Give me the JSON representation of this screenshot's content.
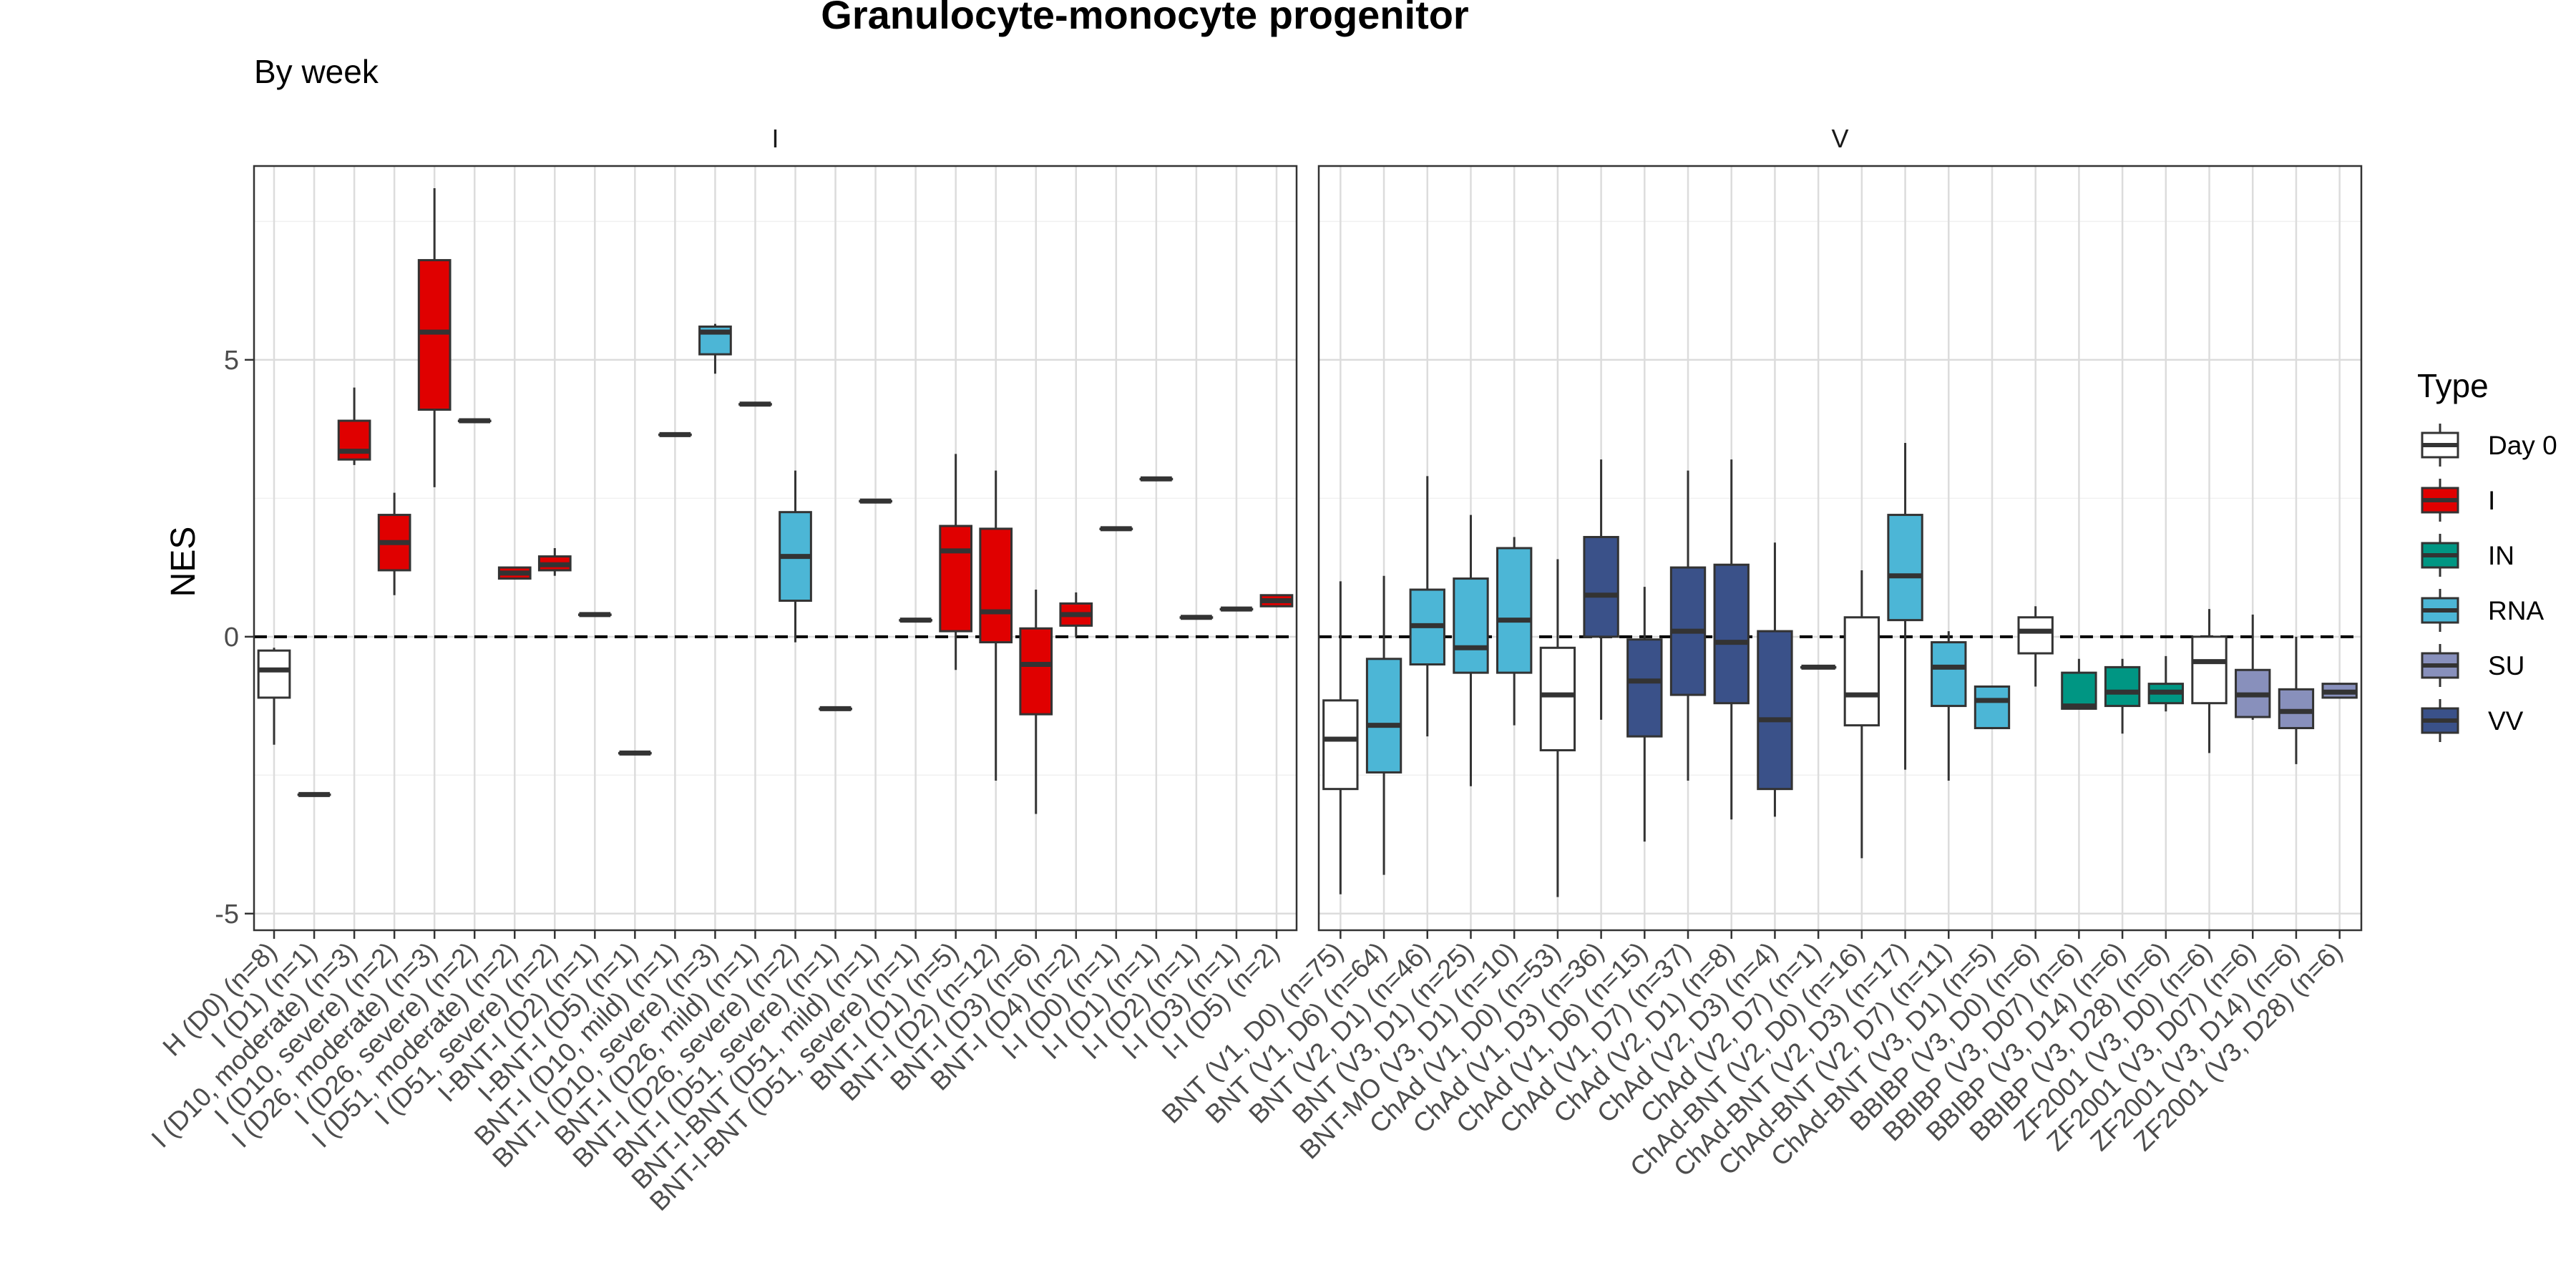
{
  "chart_data": {
    "type": "box",
    "title": "Granulocyte-monocyte progenitor",
    "subtitle": "By week",
    "ylabel": "NES",
    "xlabel": "",
    "ylim": [
      -5.3,
      8.5
    ],
    "yticks": [
      -5,
      0,
      5
    ],
    "ytick_labels": [
      "-5",
      "0",
      "5"
    ],
    "reference_line": 0,
    "grid": true,
    "legend": {
      "title": "Type",
      "position": "right",
      "items": [
        {
          "label": "Day 0",
          "color": "#ffffff"
        },
        {
          "label": "I",
          "color": "#e00000"
        },
        {
          "label": "IN",
          "color": "#009683"
        },
        {
          "label": "RNA",
          "color": "#4cb6d6"
        },
        {
          "label": "SU",
          "color": "#8890bc"
        },
        {
          "label": "VV",
          "color": "#3a5189"
        }
      ]
    },
    "panels": [
      {
        "strip": "I",
        "groups": [
          {
            "label": "H (D0) (n=8)",
            "type": "Day 0",
            "q1": -1.1,
            "median": -0.6,
            "q3": -0.25,
            "lo": -1.95,
            "hi": -0.2
          },
          {
            "label": "I (D1) (n=1)",
            "type": "I",
            "q1": -2.85,
            "median": -2.85,
            "q3": -2.85,
            "lo": -2.85,
            "hi": -2.85
          },
          {
            "label": "I (D10, moderate) (n=3)",
            "type": "I",
            "q1": 3.2,
            "median": 3.35,
            "q3": 3.9,
            "lo": 3.1,
            "hi": 4.5
          },
          {
            "label": "I (D10, severe) (n=2)",
            "type": "I",
            "q1": 1.2,
            "median": 1.7,
            "q3": 2.2,
            "lo": 0.75,
            "hi": 2.6
          },
          {
            "label": "I (D26, moderate) (n=3)",
            "type": "I",
            "q1": 4.1,
            "median": 5.5,
            "q3": 6.8,
            "lo": 2.7,
            "hi": 8.1
          },
          {
            "label": "I (D26, severe) (n=2)",
            "type": "I",
            "q1": 3.9,
            "median": 3.9,
            "q3": 3.9,
            "lo": 3.9,
            "hi": 3.9
          },
          {
            "label": "I (D51, moderate) (n=2)",
            "type": "I",
            "q1": 1.05,
            "median": 1.15,
            "q3": 1.25,
            "lo": 1.05,
            "hi": 1.25
          },
          {
            "label": "I (D51, severe) (n=2)",
            "type": "I",
            "q1": 1.2,
            "median": 1.3,
            "q3": 1.45,
            "lo": 1.1,
            "hi": 1.6
          },
          {
            "label": "I-BNT-I (D2) (n=1)",
            "type": "I",
            "q1": 0.4,
            "median": 0.4,
            "q3": 0.4,
            "lo": 0.4,
            "hi": 0.4
          },
          {
            "label": "I-BNT-I (D5) (n=1)",
            "type": "I",
            "q1": -2.1,
            "median": -2.1,
            "q3": -2.1,
            "lo": -2.1,
            "hi": -2.1
          },
          {
            "label": "BNT-I (D10, mild) (n=1)",
            "type": "RNA",
            "q1": 3.65,
            "median": 3.65,
            "q3": 3.65,
            "lo": 3.65,
            "hi": 3.65
          },
          {
            "label": "BNT-I (D10, severe) (n=3)",
            "type": "RNA",
            "q1": 5.1,
            "median": 5.5,
            "q3": 5.6,
            "lo": 4.75,
            "hi": 5.65
          },
          {
            "label": "BNT-I (D26, mild) (n=1)",
            "type": "RNA",
            "q1": 4.2,
            "median": 4.2,
            "q3": 4.2,
            "lo": 4.2,
            "hi": 4.2
          },
          {
            "label": "BNT-I (D26, severe) (n=2)",
            "type": "RNA",
            "q1": 0.65,
            "median": 1.45,
            "q3": 2.25,
            "lo": -0.1,
            "hi": 3.0
          },
          {
            "label": "BNT-I (D51, severe) (n=1)",
            "type": "RNA",
            "q1": -1.3,
            "median": -1.3,
            "q3": -1.3,
            "lo": -1.3,
            "hi": -1.3
          },
          {
            "label": "BNT-I-BNT (D51, mild) (n=1)",
            "type": "RNA",
            "q1": 2.45,
            "median": 2.45,
            "q3": 2.45,
            "lo": 2.45,
            "hi": 2.45
          },
          {
            "label": "BNT-I-BNT (D51, severe) (n=1)",
            "type": "RNA",
            "q1": 0.3,
            "median": 0.3,
            "q3": 0.3,
            "lo": 0.3,
            "hi": 0.3
          },
          {
            "label": "BNT-I (D1) (n=5)",
            "type": "I",
            "q1": 0.1,
            "median": 1.55,
            "q3": 2.0,
            "lo": -0.6,
            "hi": 3.3
          },
          {
            "label": "BNT-I (D2) (n=12)",
            "type": "I",
            "q1": -0.1,
            "median": 0.45,
            "q3": 1.95,
            "lo": -2.6,
            "hi": 3.0
          },
          {
            "label": "BNT-I (D3) (n=6)",
            "type": "I",
            "q1": -1.4,
            "median": -0.5,
            "q3": 0.15,
            "lo": -3.2,
            "hi": 0.85
          },
          {
            "label": "BNT-I (D4) (n=2)",
            "type": "I",
            "q1": 0.2,
            "median": 0.4,
            "q3": 0.6,
            "lo": 0.0,
            "hi": 0.8
          },
          {
            "label": "I-I (D0) (n=1)",
            "type": "I",
            "q1": 1.95,
            "median": 1.95,
            "q3": 1.95,
            "lo": 1.95,
            "hi": 1.95
          },
          {
            "label": "I-I (D1) (n=1)",
            "type": "I",
            "q1": 2.85,
            "median": 2.85,
            "q3": 2.85,
            "lo": 2.85,
            "hi": 2.85
          },
          {
            "label": "I-I (D2) (n=1)",
            "type": "I",
            "q1": 0.35,
            "median": 0.35,
            "q3": 0.35,
            "lo": 0.35,
            "hi": 0.35
          },
          {
            "label": "I-I (D3) (n=1)",
            "type": "I",
            "q1": 0.5,
            "median": 0.5,
            "q3": 0.5,
            "lo": 0.5,
            "hi": 0.5
          },
          {
            "label": "I-I (D5) (n=2)",
            "type": "I",
            "q1": 0.55,
            "median": 0.65,
            "q3": 0.75,
            "lo": 0.55,
            "hi": 0.75
          }
        ]
      },
      {
        "strip": "V",
        "groups": [
          {
            "label": "BNT (V1, D0) (n=75)",
            "type": "Day 0",
            "q1": -2.75,
            "median": -1.85,
            "q3": -1.15,
            "lo": -4.65,
            "hi": 1.0
          },
          {
            "label": "BNT (V1, D6) (n=64)",
            "type": "RNA",
            "q1": -2.45,
            "median": -1.6,
            "q3": -0.4,
            "lo": -4.3,
            "hi": 1.1
          },
          {
            "label": "BNT (V2, D1) (n=46)",
            "type": "RNA",
            "q1": -0.5,
            "median": 0.2,
            "q3": 0.85,
            "lo": -1.8,
            "hi": 2.9
          },
          {
            "label": "BNT (V3, D1) (n=25)",
            "type": "RNA",
            "q1": -0.65,
            "median": -0.2,
            "q3": 1.05,
            "lo": -2.7,
            "hi": 2.2
          },
          {
            "label": "BNT-MO (V3, D1) (n=10)",
            "type": "RNA",
            "q1": -0.65,
            "median": 0.3,
            "q3": 1.6,
            "lo": -1.6,
            "hi": 1.8
          },
          {
            "label": "ChAd (V1, D0) (n=53)",
            "type": "Day 0",
            "q1": -2.05,
            "median": -1.05,
            "q3": -0.2,
            "lo": -4.7,
            "hi": 1.4
          },
          {
            "label": "ChAd (V1, D3) (n=36)",
            "type": "VV",
            "q1": 0.0,
            "median": 0.75,
            "q3": 1.8,
            "lo": -1.5,
            "hi": 3.2
          },
          {
            "label": "ChAd (V1, D6) (n=15)",
            "type": "VV",
            "q1": -1.8,
            "median": -0.8,
            "q3": -0.05,
            "lo": -3.7,
            "hi": 0.9
          },
          {
            "label": "ChAd (V1, D7) (n=37)",
            "type": "VV",
            "q1": -1.05,
            "median": 0.1,
            "q3": 1.25,
            "lo": -2.6,
            "hi": 3.0
          },
          {
            "label": "ChAd (V2, D1) (n=8)",
            "type": "VV",
            "q1": -1.2,
            "median": -0.1,
            "q3": 1.3,
            "lo": -3.3,
            "hi": 3.2
          },
          {
            "label": "ChAd (V2, D3) (n=4)",
            "type": "VV",
            "q1": -2.75,
            "median": -1.5,
            "q3": 0.1,
            "lo": -3.25,
            "hi": 1.7
          },
          {
            "label": "ChAd (V2, D7) (n=1)",
            "type": "VV",
            "q1": -0.55,
            "median": -0.55,
            "q3": -0.55,
            "lo": -0.55,
            "hi": -0.55
          },
          {
            "label": "ChAd-BNT (V2, D0) (n=16)",
            "type": "Day 0",
            "q1": -1.6,
            "median": -1.05,
            "q3": 0.35,
            "lo": -4.0,
            "hi": 1.2
          },
          {
            "label": "ChAd-BNT (V2, D3) (n=17)",
            "type": "RNA",
            "q1": 0.3,
            "median": 1.1,
            "q3": 2.2,
            "lo": -2.4,
            "hi": 3.5
          },
          {
            "label": "ChAd-BNT (V2, D7) (n=11)",
            "type": "RNA",
            "q1": -1.25,
            "median": -0.55,
            "q3": -0.1,
            "lo": -2.6,
            "hi": 0.1
          },
          {
            "label": "ChAd-BNT (V3, D1) (n=5)",
            "type": "RNA",
            "q1": -1.65,
            "median": -1.15,
            "q3": -0.9,
            "lo": -1.65,
            "hi": -0.9
          },
          {
            "label": "BBIBP (V3, D0) (n=6)",
            "type": "Day 0",
            "q1": -0.3,
            "median": 0.1,
            "q3": 0.35,
            "lo": -0.9,
            "hi": 0.55
          },
          {
            "label": "BBIBP (V3, D07) (n=6)",
            "type": "IN",
            "q1": -1.3,
            "median": -1.25,
            "q3": -0.65,
            "lo": -1.3,
            "hi": -0.4
          },
          {
            "label": "BBIBP (V3, D14) (n=6)",
            "type": "IN",
            "q1": -1.25,
            "median": -1.0,
            "q3": -0.55,
            "lo": -1.75,
            "hi": -0.4
          },
          {
            "label": "BBIBP (V3, D28) (n=6)",
            "type": "IN",
            "q1": -1.2,
            "median": -1.0,
            "q3": -0.85,
            "lo": -1.35,
            "hi": -0.35
          },
          {
            "label": "ZF2001 (V3, D0) (n=6)",
            "type": "Day 0",
            "q1": -1.2,
            "median": -0.45,
            "q3": 0.0,
            "lo": -2.1,
            "hi": 0.5
          },
          {
            "label": "ZF2001 (V3, D07) (n=6)",
            "type": "SU",
            "q1": -1.45,
            "median": -1.05,
            "q3": -0.6,
            "lo": -1.5,
            "hi": 0.4
          },
          {
            "label": "ZF2001 (V3, D14) (n=6)",
            "type": "SU",
            "q1": -1.65,
            "median": -1.35,
            "q3": -0.95,
            "lo": -2.3,
            "hi": 0.0
          },
          {
            "label": "ZF2001 (V3, D28) (n=6)",
            "type": "SU",
            "q1": -1.1,
            "median": -1.0,
            "q3": -0.85,
            "lo": -1.1,
            "hi": -0.85
          }
        ]
      }
    ]
  }
}
